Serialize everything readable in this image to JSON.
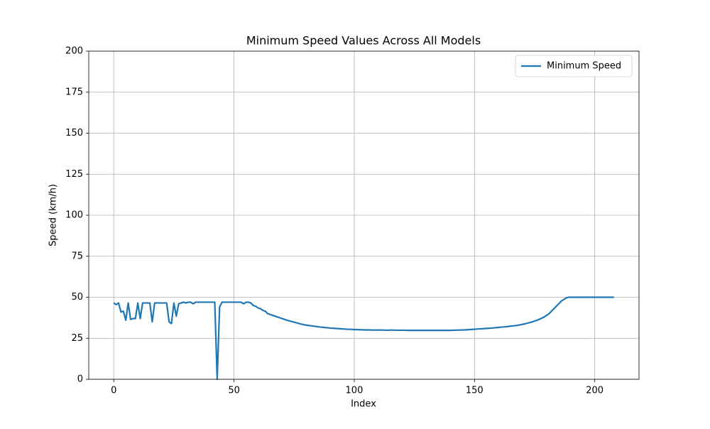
{
  "chart_data": {
    "type": "line",
    "title": "Minimum Speed Values Across All Models",
    "xlabel": "Index",
    "ylabel": "Speed (km/h)",
    "xlim": [
      -10.4,
      218.4
    ],
    "ylim": [
      0,
      200
    ],
    "xticks": [
      0,
      50,
      100,
      150,
      200
    ],
    "yticks": [
      0,
      25,
      50,
      75,
      100,
      125,
      150,
      175,
      200
    ],
    "grid": true,
    "legend": "upper right",
    "x": [
      0,
      1,
      2,
      3,
      4,
      5,
      6,
      7,
      8,
      9,
      10,
      11,
      12,
      13,
      14,
      15,
      16,
      17,
      18,
      19,
      20,
      21,
      22,
      23,
      24,
      25,
      26,
      27,
      28,
      29,
      30,
      31,
      32,
      33,
      34,
      35,
      36,
      37,
      38,
      39,
      40,
      41,
      42,
      43,
      44,
      45,
      46,
      47,
      48,
      49,
      50,
      51,
      52,
      53,
      54,
      55,
      56,
      57,
      58,
      59,
      60,
      61,
      62,
      63,
      64,
      65,
      66,
      67,
      68,
      69,
      70,
      71,
      72,
      73,
      74,
      75,
      76,
      77,
      78,
      79,
      80,
      81,
      82,
      83,
      84,
      85,
      86,
      87,
      88,
      89,
      90,
      91,
      92,
      93,
      94,
      95,
      96,
      97,
      98,
      99,
      100,
      101,
      102,
      103,
      104,
      105,
      106,
      107,
      108,
      109,
      110,
      111,
      112,
      113,
      114,
      115,
      116,
      117,
      118,
      119,
      120,
      121,
      122,
      123,
      124,
      125,
      126,
      127,
      128,
      129,
      130,
      131,
      132,
      133,
      134,
      135,
      136,
      137,
      138,
      139,
      140,
      141,
      142,
      143,
      144,
      145,
      146,
      147,
      148,
      149,
      150,
      151,
      152,
      153,
      154,
      155,
      156,
      157,
      158,
      159,
      160,
      161,
      162,
      163,
      164,
      165,
      166,
      167,
      168,
      169,
      170,
      171,
      172,
      173,
      174,
      175,
      176,
      177,
      178,
      179,
      180,
      181,
      182,
      183,
      184,
      185,
      186,
      187,
      188,
      189,
      190,
      191,
      192,
      193,
      194,
      195,
      196,
      197,
      198,
      199,
      200,
      201,
      202,
      203,
      204,
      205,
      206,
      207,
      208
    ],
    "series": [
      {
        "name": "Minimum Speed",
        "color": "#1f77b4",
        "values": [
          46.5,
          45.5,
          46.5,
          41,
          41.5,
          36,
          46.5,
          36.5,
          37,
          37,
          46.5,
          37,
          46.5,
          46.5,
          46.5,
          46.5,
          35,
          46.5,
          46.5,
          46.5,
          46.5,
          46.5,
          46.5,
          35,
          34,
          46.5,
          38.5,
          46,
          46.5,
          47,
          46.5,
          47,
          47,
          46,
          47,
          47,
          47,
          47,
          47,
          47,
          47,
          47,
          47,
          0,
          44,
          47,
          47,
          47,
          47,
          47,
          47,
          47,
          47,
          47,
          46,
          47,
          47,
          46.5,
          45,
          44.5,
          43.5,
          43,
          42,
          41.5,
          40,
          39.5,
          39,
          38.5,
          38,
          37.5,
          37,
          36.5,
          36,
          35.6,
          35.2,
          34.8,
          34.4,
          34,
          33.6,
          33.3,
          33,
          32.8,
          32.6,
          32.4,
          32.2,
          32,
          31.8,
          31.7,
          31.5,
          31.4,
          31.2,
          31.1,
          31,
          30.9,
          30.8,
          30.7,
          30.6,
          30.5,
          30.5,
          30.4,
          30.3,
          30.3,
          30.2,
          30.2,
          30.1,
          30.1,
          30.1,
          30,
          30,
          30,
          30,
          30,
          30,
          29.9,
          29.9,
          30,
          30,
          29.9,
          29.9,
          29.9,
          29.9,
          29.9,
          29.8,
          29.8,
          29.8,
          29.8,
          29.8,
          29.8,
          29.8,
          29.8,
          29.8,
          29.8,
          29.8,
          29.8,
          29.8,
          29.8,
          29.8,
          29.8,
          29.8,
          29.8,
          29.8,
          29.9,
          29.9,
          30,
          30,
          30.1,
          30.1,
          30.2,
          30.3,
          30.4,
          30.5,
          30.6,
          30.7,
          30.8,
          30.9,
          31,
          31.1,
          31.2,
          31.3,
          31.5,
          31.6,
          31.8,
          31.9,
          32,
          32.2,
          32.4,
          32.5,
          32.7,
          32.9,
          33.2,
          33.5,
          33.8,
          34.2,
          34.6,
          35,
          35.5,
          36,
          36.6,
          37.3,
          38,
          39,
          40,
          41.5,
          43,
          44.5,
          46,
          47.5,
          48.5,
          49.5,
          50,
          50,
          50,
          50,
          50,
          50,
          50,
          50,
          50,
          50,
          50,
          50,
          50,
          50,
          50,
          50,
          50,
          50,
          50,
          50
        ]
      }
    ]
  }
}
